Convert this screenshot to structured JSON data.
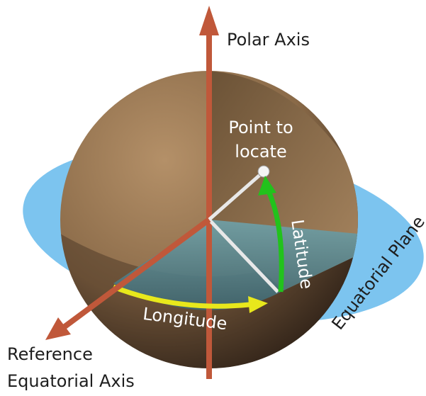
{
  "labels": {
    "polar_axis": "Polar Axis",
    "point": [
      "Point to",
      "locate"
    ],
    "latitude": "Latitude",
    "longitude": "Longitude",
    "equatorial_plane": "Equatorial Plane",
    "reference_axis": [
      "Reference",
      "Equatorial Axis"
    ]
  }
}
